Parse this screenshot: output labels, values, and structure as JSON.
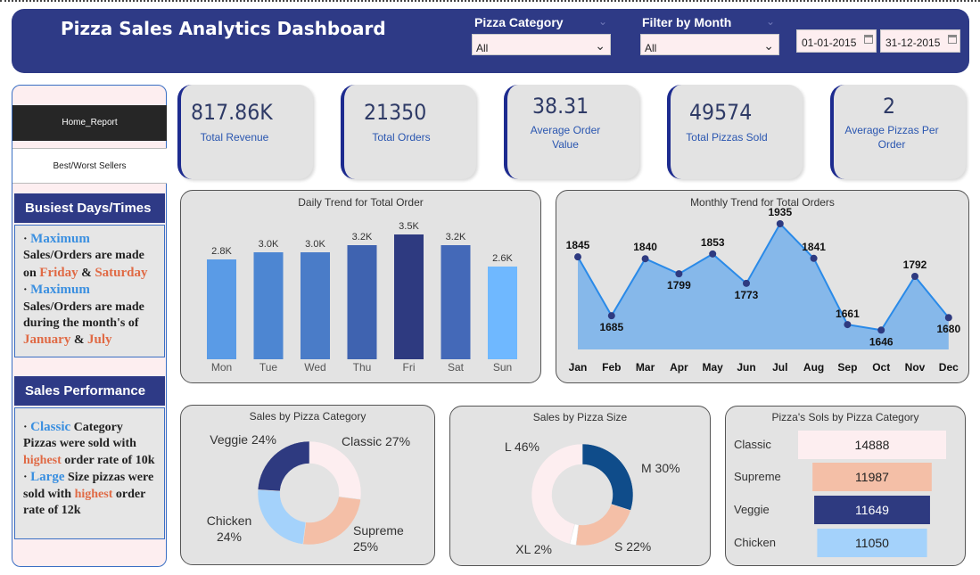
{
  "header": {
    "title": "Pizza Sales Analytics Dashboard",
    "filters": [
      {
        "label": "Pizza Category",
        "value": "All"
      },
      {
        "label": "Filter by Month",
        "value": "All"
      }
    ],
    "date_start": "01-01-2015",
    "date_end": "31-12-2015",
    "background": "#2e3a86"
  },
  "nav": {
    "home": "Home_Report",
    "best_worst": "Best/Worst Sellers"
  },
  "busiest": {
    "title": "Busiest Days/Times",
    "l1_a": "Maximum",
    "l1_b": " Sales/Orders are made on ",
    "l1_c": "Friday",
    "l1_d": " & ",
    "l1_e": "Saturday",
    "l2_a": "Maximum",
    "l2_b": " Sales/Orders are made during the month's of ",
    "l2_c": "January",
    "l2_d": " & ",
    "l2_e": "July"
  },
  "performance": {
    "title": "Sales Performance",
    "l1_a": "Classic",
    "l1_b": " Category Pizzas were sold with ",
    "l1_c": "highest",
    "l1_d": " order rate of 10k",
    "l2_a": "Large",
    "l2_b": " Size pizzas were sold with ",
    "l2_c": "highest",
    "l2_d": " order rate of 12k"
  },
  "kpis": [
    {
      "value": "817.86K",
      "label": "Total Revenue"
    },
    {
      "value": "21350",
      "label": "Total Orders"
    },
    {
      "value": "38.31",
      "label": "Average Order Value"
    },
    {
      "value": "49574",
      "label": "Total Pizzas Sold"
    },
    {
      "value": "2",
      "label": "Average Pizzas Per Order"
    }
  ],
  "chart_data": [
    {
      "type": "bar",
      "title": "Daily Trend for Total Order",
      "categories": [
        "Mon",
        "Tue",
        "Wed",
        "Thu",
        "Fri",
        "Sat",
        "Sun"
      ],
      "values": [
        2800,
        3000,
        3000,
        3200,
        3500,
        3200,
        2600
      ],
      "labels": [
        "2.8K",
        "3.0K",
        "3.0K",
        "3.2K",
        "3.5K",
        "3.2K",
        "2.6K"
      ],
      "colors": [
        "#5a9be6",
        "#4d86d2",
        "#4a7cc8",
        "#3f63b0",
        "#2e3a80",
        "#4469b8",
        "#6fb8ff"
      ],
      "ylim": [
        0,
        3500
      ]
    },
    {
      "type": "area",
      "title": "Monthly Trend for Total Orders",
      "categories": [
        "Jan",
        "Feb",
        "Mar",
        "Apr",
        "May",
        "Jun",
        "Jul",
        "Aug",
        "Sep",
        "Oct",
        "Nov",
        "Dec"
      ],
      "values": [
        1845,
        1685,
        1840,
        1799,
        1853,
        1773,
        1935,
        1841,
        1661,
        1646,
        1792,
        1680
      ],
      "line_color": "#2a8ae8",
      "fill_color": "#86b8ea",
      "point_color": "#2e3a80"
    },
    {
      "type": "pie",
      "title": "Sales by Pizza Category",
      "categories": [
        "Classic",
        "Supreme",
        "Chicken",
        "Veggie"
      ],
      "values": [
        27,
        25,
        24,
        24
      ],
      "labels": [
        "Classic 27%",
        "Supreme 25%",
        "Chicken 24%",
        "Veggie 24%"
      ],
      "colors": [
        "#fdeef0",
        "#f4bfa7",
        "#a4d2fb",
        "#2e3a80"
      ]
    },
    {
      "type": "pie",
      "title": "Sales by Pizza Size",
      "categories": [
        "M",
        "S",
        "XL",
        "L"
      ],
      "values": [
        30,
        22,
        2,
        46
      ],
      "labels": [
        "M 30%",
        "S 22%",
        "XL 2%",
        "L 46%"
      ],
      "colors": [
        "#0f4c8a",
        "#f4bfa7",
        "#ffffff",
        "#fdeef0"
      ]
    },
    {
      "type": "bar",
      "title": "Pizza's Sols by Pizza Category",
      "categories": [
        "Classic",
        "Supreme",
        "Veggie",
        "Chicken"
      ],
      "values": [
        14888,
        11987,
        11649,
        11050
      ],
      "colors": [
        "#fdeef0",
        "#f4bfa7",
        "#2e3a80",
        "#a4d2fb"
      ]
    }
  ]
}
